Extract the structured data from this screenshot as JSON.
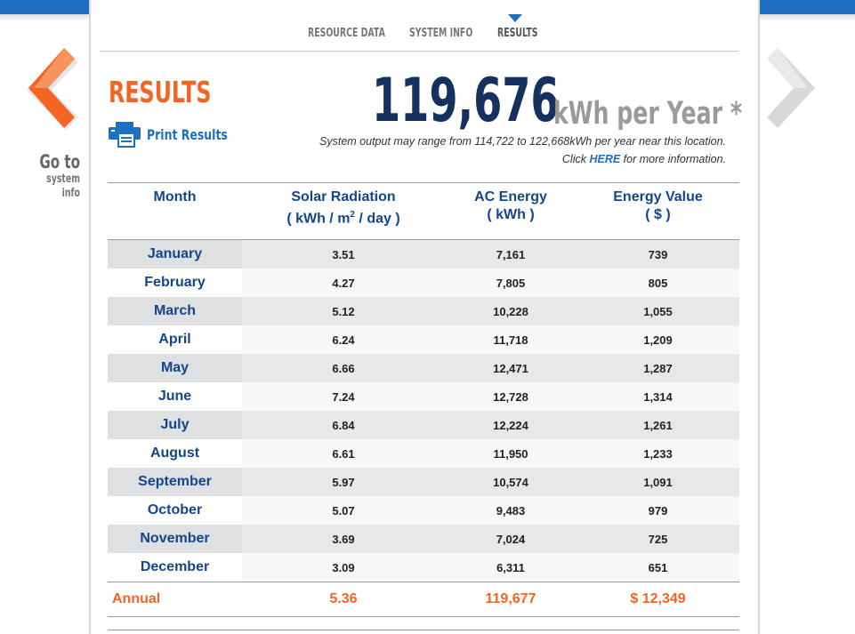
{
  "nav": {
    "tabs": [
      {
        "label": "RESOURCE DATA",
        "active": false
      },
      {
        "label": "SYSTEM INFO",
        "active": false
      },
      {
        "label": "RESULTS",
        "active": true
      }
    ],
    "prev_line1": "Go to",
    "prev_line2": "system info"
  },
  "header": {
    "title": "RESULTS",
    "print_label": "Print Results",
    "annual_output": "119,676",
    "annual_unit": "kWh per Year *",
    "range_note": "System output may range from 114,722 to 122,668kWh per year near this location.",
    "click_prefix": "Click ",
    "click_link": "HERE",
    "click_suffix": " for more information."
  },
  "table": {
    "columns": {
      "month": "Month",
      "solar_line1": "Solar Radiation",
      "solar_unit_a": "( kWh / m",
      "solar_unit_sup": "2",
      "solar_unit_b": " / day )",
      "ac_line1": "AC Energy",
      "ac_line2": "( kWh )",
      "value_line1": "Energy Value",
      "value_line2": "( $ )"
    },
    "rows": [
      {
        "month": "January",
        "solar": "3.51",
        "ac": "7,161",
        "value": "739"
      },
      {
        "month": "February",
        "solar": "4.27",
        "ac": "7,805",
        "value": "805"
      },
      {
        "month": "March",
        "solar": "5.12",
        "ac": "10,228",
        "value": "1,055"
      },
      {
        "month": "April",
        "solar": "6.24",
        "ac": "11,718",
        "value": "1,209"
      },
      {
        "month": "May",
        "solar": "6.66",
        "ac": "12,471",
        "value": "1,287"
      },
      {
        "month": "June",
        "solar": "7.24",
        "ac": "12,728",
        "value": "1,314"
      },
      {
        "month": "July",
        "solar": "6.84",
        "ac": "12,224",
        "value": "1,261"
      },
      {
        "month": "August",
        "solar": "6.61",
        "ac": "11,950",
        "value": "1,233"
      },
      {
        "month": "September",
        "solar": "5.97",
        "ac": "10,574",
        "value": "1,091"
      },
      {
        "month": "October",
        "solar": "5.07",
        "ac": "9,483",
        "value": "979"
      },
      {
        "month": "November",
        "solar": "3.69",
        "ac": "7,024",
        "value": "725"
      },
      {
        "month": "December",
        "solar": "3.09",
        "ac": "6,311",
        "value": "651"
      }
    ],
    "annual": {
      "month": "Annual",
      "solar": "5.36",
      "ac": "119,677",
      "value": "$ 12,349"
    }
  },
  "colors": {
    "accent_orange": "#f26522",
    "brand_blue": "#1c6fc2",
    "navy": "#14315f"
  }
}
